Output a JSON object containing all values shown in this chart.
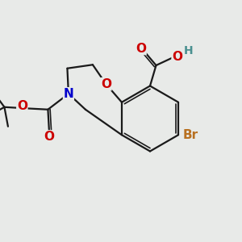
{
  "bg_color": "#e8eae8",
  "bond_color": "#1a1a1a",
  "bond_width": 1.6,
  "colors": {
    "O": "#cc0000",
    "N": "#0000cc",
    "Br": "#b87020",
    "H": "#4a9090",
    "C": "#1a1a1a"
  },
  "font_size": 11
}
